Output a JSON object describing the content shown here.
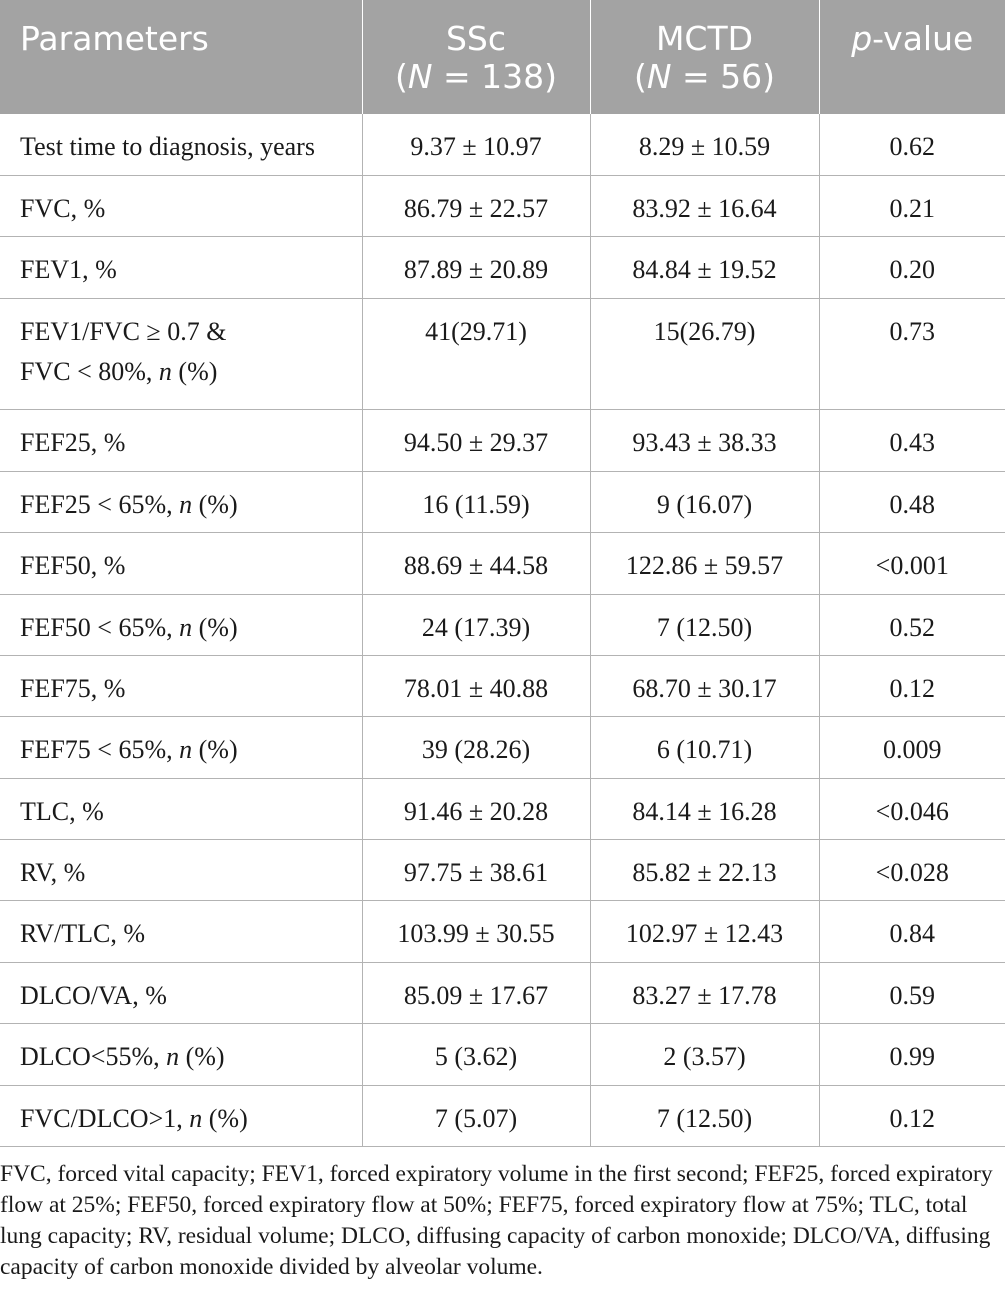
{
  "header": {
    "col1": "Parameters",
    "col2_line1": "SSc",
    "col2_line2_pre": "(",
    "col2_line2_n": "N",
    "col2_line2_post": " = 138)",
    "col3_line1": "MCTD",
    "col3_line2_pre": "(",
    "col3_line2_n": "N",
    "col3_line2_post": " = 56)",
    "col4_p": "p",
    "col4_rest": "-value"
  },
  "rows": [
    {
      "param": "Test time to diagnosis, years",
      "ssc": "9.37 ± 10.97",
      "mctd": "8.29 ± 10.59",
      "p": "0.62"
    },
    {
      "param": "FVC, %",
      "ssc": "86.79 ± 22.57",
      "mctd": "83.92 ± 16.64",
      "p": "0.21"
    },
    {
      "param": "FEV1, %",
      "ssc": "87.89 ± 20.89",
      "mctd": "84.84 ± 19.52",
      "p": "0.20"
    },
    {
      "param_line1": "FEV1/FVC ≥ 0.7 &",
      "param_line2_pre": "FVC < 80%, ",
      "param_n": "n",
      "param_suffix": " (%)",
      "ssc": "41(29.71)",
      "mctd": "15(26.79)",
      "p": "0.73"
    },
    {
      "param": "FEF25, %",
      "ssc": "94.50 ± 29.37",
      "mctd": "93.43 ± 38.33",
      "p": "0.43"
    },
    {
      "param_pre": "FEF25 < 65%, ",
      "param_n": "n",
      "param_suffix": " (%)",
      "ssc": "16 (11.59)",
      "mctd": "9 (16.07)",
      "p": "0.48"
    },
    {
      "param": "FEF50, %",
      "ssc": "88.69 ± 44.58",
      "mctd": "122.86 ± 59.57",
      "p": "<0.001"
    },
    {
      "param_pre": "FEF50 < 65%, ",
      "param_n": "n",
      "param_suffix": " (%)",
      "ssc": "24 (17.39)",
      "mctd": "7 (12.50)",
      "p": "0.52"
    },
    {
      "param": "FEF75, %",
      "ssc": "78.01 ± 40.88",
      "mctd": "68.70 ± 30.17",
      "p": "0.12"
    },
    {
      "param_pre": "FEF75 < 65%, ",
      "param_n": "n",
      "param_suffix": " (%)",
      "ssc": "39 (28.26)",
      "mctd": "6 (10.71)",
      "p": "0.009"
    },
    {
      "param": "TLC, %",
      "ssc": "91.46 ± 20.28",
      "mctd": "84.14 ± 16.28",
      "p": "<0.046"
    },
    {
      "param": "RV, %",
      "ssc": "97.75 ± 38.61",
      "mctd": "85.82 ± 22.13",
      "p": "<0.028"
    },
    {
      "param": "RV/TLC, %",
      "ssc": "103.99 ± 30.55",
      "mctd": "102.97 ± 12.43",
      "p": "0.84"
    },
    {
      "param": "DLCO/VA, %",
      "ssc": "85.09 ± 17.67",
      "mctd": "83.27 ± 17.78",
      "p": "0.59"
    },
    {
      "param_pre": "DLCO<55%, ",
      "param_n": "n",
      "param_suffix": " (%)",
      "ssc": "5 (3.62)",
      "mctd": "2 (3.57)",
      "p": "0.99"
    },
    {
      "param_pre": "FVC/DLCO>1, ",
      "param_n": "n",
      "param_suffix": " (%)",
      "ssc": "7 (5.07)",
      "mctd": "7 (12.50)",
      "p": "0.12"
    }
  ],
  "footnote": "FVC, forced vital capacity; FEV1, forced expiratory volume in the first second; FEF25, forced expiratory flow at 25%; FEF50, forced expiratory flow at 50%; FEF75, forced expiratory flow at 75%; TLC, total lung capacity; RV, residual volume; DLCO, diffusing capacity of carbon monoxide; DLCO/VA, diffusing capacity of carbon monoxide divided by alveolar volume."
}
